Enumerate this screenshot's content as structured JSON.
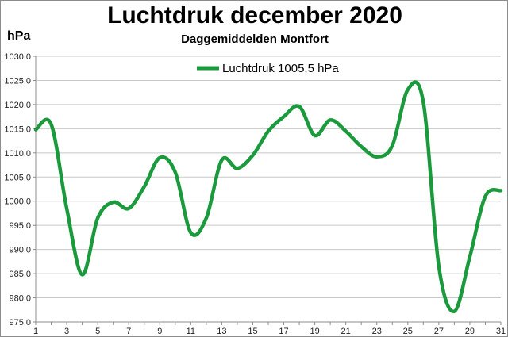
{
  "colors": {
    "series": "#1a9a3c",
    "grid": "#c8c8c8",
    "axis": "#8c8c8c"
  },
  "chart_data": {
    "type": "line",
    "title": "Luchtdruk december 2020",
    "subtitle": "Daggemiddelden Montfort",
    "y_unit": "hPa",
    "xlabel": "",
    "ylabel": "",
    "ylim": [
      975.0,
      1030.0
    ],
    "y_step": 5,
    "y_ticks": [
      "975,0",
      "980,0",
      "985,0",
      "990,0",
      "995,0",
      "1000,0",
      "1005,0",
      "1010,0",
      "1015,0",
      "1020,0",
      "1025,0",
      "1030,0"
    ],
    "x_ticks": [
      "1",
      "3",
      "5",
      "7",
      "9",
      "11",
      "13",
      "15",
      "17",
      "19",
      "21",
      "23",
      "25",
      "27",
      "29",
      "31"
    ],
    "grid": true,
    "legend_position": "top-center",
    "series": [
      {
        "name": "Luchtdruk 1005,5 hPa",
        "x": [
          1,
          2,
          3,
          4,
          5,
          6,
          7,
          8,
          9,
          10,
          11,
          12,
          13,
          14,
          15,
          16,
          17,
          18,
          19,
          20,
          21,
          22,
          23,
          24,
          25,
          26,
          27,
          28,
          29,
          30,
          31
        ],
        "values": [
          1014.8,
          1015.9,
          998.5,
          984.8,
          996.5,
          999.8,
          998.5,
          1003.0,
          1009.0,
          1006.0,
          993.5,
          996.5,
          1008.5,
          1006.8,
          1009.5,
          1014.5,
          1017.5,
          1019.6,
          1013.6,
          1016.8,
          1014.5,
          1011.3,
          1009.2,
          1011.5,
          1023.1,
          1020.5,
          986.5,
          977.2,
          988.5,
          1001.0,
          1002.2
        ]
      }
    ]
  }
}
